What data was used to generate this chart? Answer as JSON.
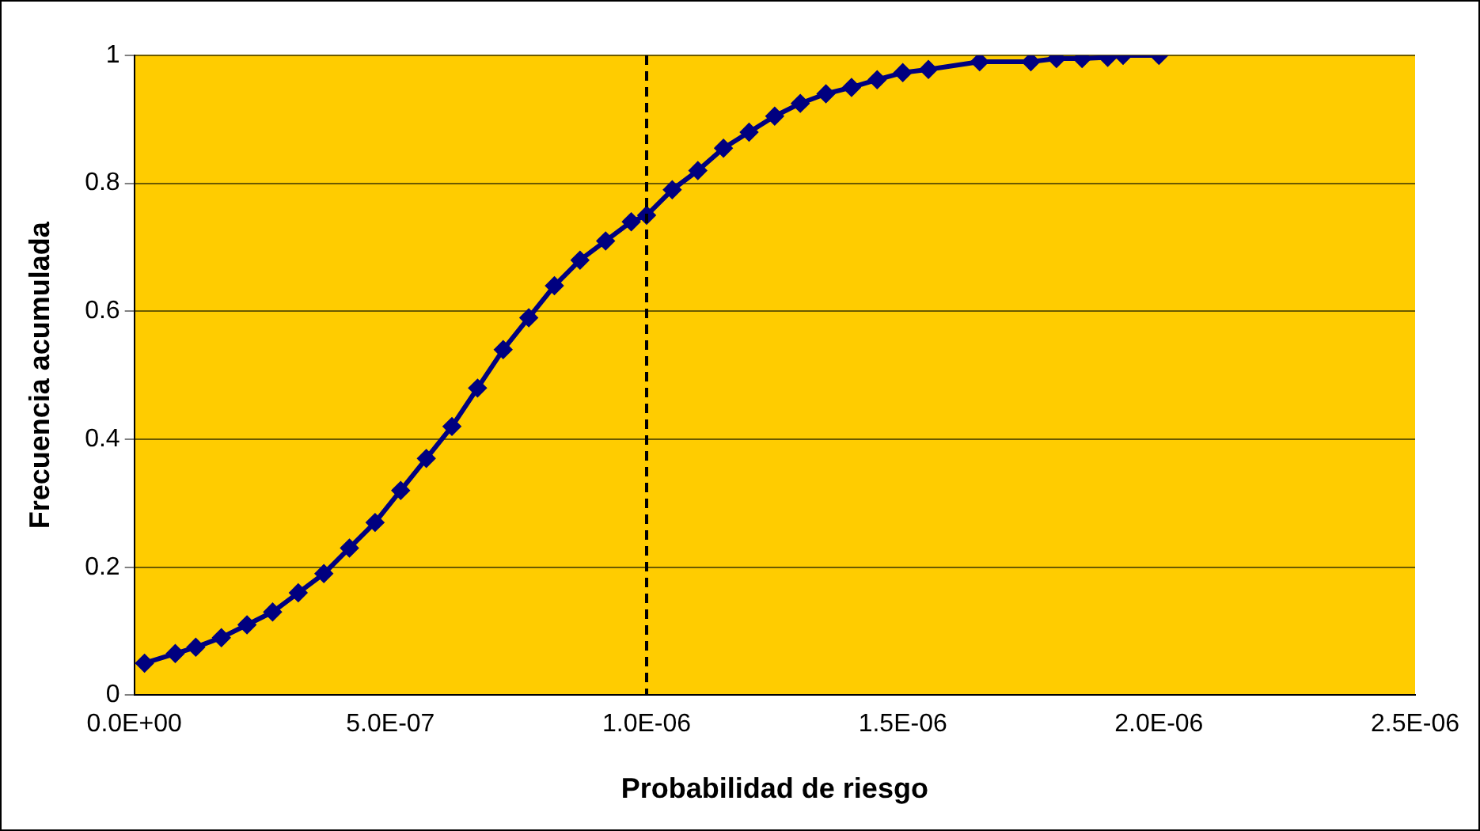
{
  "chart_data": {
    "type": "line",
    "xlabel": "Probabilidad de riesgo",
    "ylabel": "Frecuencia acumulada",
    "x": [
      2e-08,
      8e-08,
      1.2e-07,
      1.7e-07,
      2.2e-07,
      2.7e-07,
      3.2e-07,
      3.7e-07,
      4.2e-07,
      4.7e-07,
      5.2e-07,
      5.7e-07,
      6.2e-07,
      6.7e-07,
      7.2e-07,
      7.7e-07,
      8.2e-07,
      8.7e-07,
      9.2e-07,
      9.7e-07,
      1e-06,
      1.05e-06,
      1.1e-06,
      1.15e-06,
      1.2e-06,
      1.25e-06,
      1.3e-06,
      1.35e-06,
      1.4e-06,
      1.45e-06,
      1.5e-06,
      1.55e-06,
      1.65e-06,
      1.75e-06,
      1.8e-06,
      1.85e-06,
      1.9e-06,
      1.93e-06,
      2e-06
    ],
    "series": [
      {
        "color": "#000080",
        "values": [
          0.05,
          0.065,
          0.075,
          0.09,
          0.11,
          0.13,
          0.16,
          0.19,
          0.23,
          0.27,
          0.32,
          0.37,
          0.42,
          0.48,
          0.54,
          0.59,
          0.64,
          0.68,
          0.71,
          0.74,
          0.75,
          0.79,
          0.82,
          0.855,
          0.88,
          0.905,
          0.925,
          0.94,
          0.95,
          0.962,
          0.973,
          0.978,
          0.99,
          0.99,
          0.995,
          0.995,
          0.997,
          1.0,
          1.0
        ]
      }
    ],
    "xlim": [
      0,
      2.5e-06
    ],
    "xticks": [
      {
        "value": 0,
        "label": "0.0E+00"
      },
      {
        "value": 5e-07,
        "label": "5.0E-07"
      },
      {
        "value": 1e-06,
        "label": "1.0E-06"
      },
      {
        "value": 1.5e-06,
        "label": "1.5E-06"
      },
      {
        "value": 2e-06,
        "label": "2.0E-06"
      },
      {
        "value": 2.5e-06,
        "label": "2.5E-06"
      }
    ],
    "ylim": [
      0,
      1
    ],
    "yticks": [
      0,
      0.2,
      0.4,
      0.6,
      0.8,
      1
    ],
    "grid": "y",
    "legend": false,
    "marker": "diamond",
    "line_style": "solid",
    "ref_lines": [
      {
        "axis": "x",
        "value": 1e-06,
        "color": "#000000",
        "line_style": "dashed"
      }
    ]
  }
}
